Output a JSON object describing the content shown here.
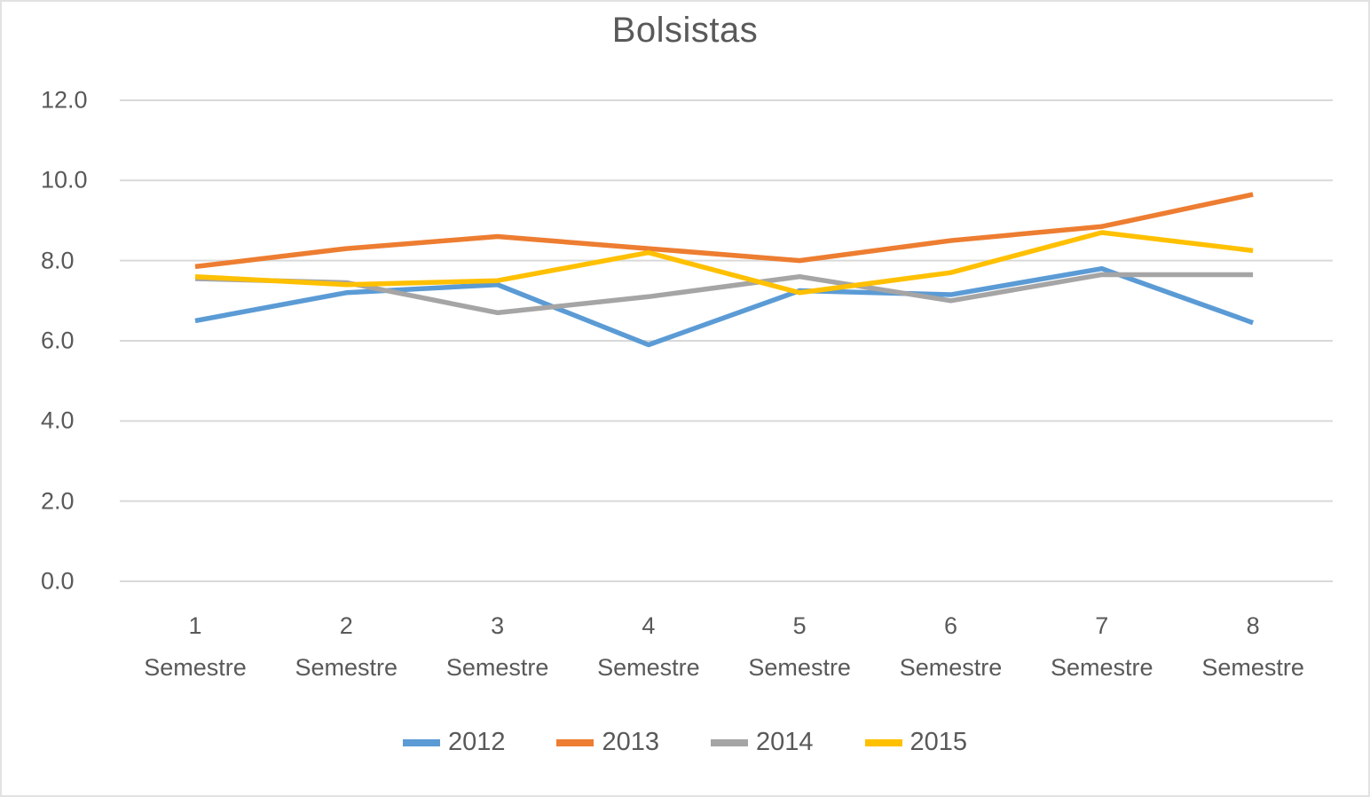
{
  "chart_data": {
    "type": "line",
    "title": "Bolsistas",
    "xlabel": "",
    "ylabel": "",
    "ylim": [
      0,
      12
    ],
    "grid": true,
    "legend_position": "bottom",
    "yticks": [
      "0.0",
      "2.0",
      "4.0",
      "6.0",
      "8.0",
      "10.0",
      "12.0"
    ],
    "ytick_values": [
      0,
      2,
      4,
      6,
      8,
      10,
      12
    ],
    "categories": [
      "1 Semestre",
      "2 Semestre",
      "3 Semestre",
      "4 Semestre",
      "5 Semestre",
      "6 Semestre",
      "7 Semestre",
      "8 Semestre"
    ],
    "series": [
      {
        "name": "2012",
        "color": "#5B9BD5",
        "values": [
          6.5,
          7.2,
          7.4,
          5.9,
          7.25,
          7.15,
          7.8,
          6.45
        ]
      },
      {
        "name": "2013",
        "color": "#ED7D31",
        "values": [
          7.85,
          8.3,
          8.6,
          8.3,
          8.0,
          8.5,
          8.85,
          9.65
        ]
      },
      {
        "name": "2014",
        "color": "#A5A5A5",
        "values": [
          7.55,
          7.45,
          6.7,
          7.1,
          7.6,
          7.0,
          7.65,
          7.65
        ]
      },
      {
        "name": "2015",
        "color": "#FFC000",
        "values": [
          7.6,
          7.4,
          7.5,
          8.2,
          7.2,
          7.7,
          8.7,
          8.25
        ]
      }
    ],
    "gridline_color": "#D9D9D9",
    "text_color": "#595959",
    "background_color": "#FFFFFF"
  }
}
